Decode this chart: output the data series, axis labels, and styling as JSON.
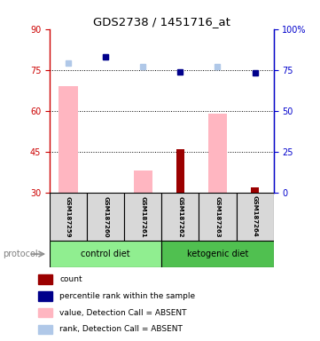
{
  "title": "GDS2738 / 1451716_at",
  "samples": [
    "GSM187259",
    "GSM187260",
    "GSM187261",
    "GSM187262",
    "GSM187263",
    "GSM187264"
  ],
  "left_ylim": [
    30,
    90
  ],
  "right_ylim": [
    0,
    100
  ],
  "left_yticks": [
    30,
    45,
    60,
    75,
    90
  ],
  "right_yticks": [
    0,
    25,
    50,
    75,
    100
  ],
  "right_yticklabels": [
    "0",
    "25",
    "50",
    "75",
    "100%"
  ],
  "count_values": [
    30,
    30,
    30,
    46,
    30,
    32
  ],
  "value_absent": [
    69,
    null,
    38,
    null,
    59,
    null
  ],
  "percentile_rank": [
    null,
    83,
    null,
    74,
    null,
    73
  ],
  "rank_absent_marker": [
    79,
    83,
    77,
    null,
    77,
    null
  ],
  "groups": [
    {
      "label": "control diet",
      "color": "#90ee90"
    },
    {
      "label": "ketogenic diet",
      "color": "#50c050"
    }
  ],
  "count_color": "#9b0000",
  "value_absent_color": "#ffb6c1",
  "percentile_rank_color": "#00008b",
  "rank_absent_color": "#b0c8e8",
  "left_axis_color": "#cc0000",
  "right_axis_color": "#0000cc",
  "background_color": "#d8d8d8",
  "legend_items": [
    {
      "label": "count",
      "color": "#9b0000"
    },
    {
      "label": "percentile rank within the sample",
      "color": "#00008b"
    },
    {
      "label": "value, Detection Call = ABSENT",
      "color": "#ffb6c1"
    },
    {
      "label": "rank, Detection Call = ABSENT",
      "color": "#b0c8e8"
    }
  ]
}
